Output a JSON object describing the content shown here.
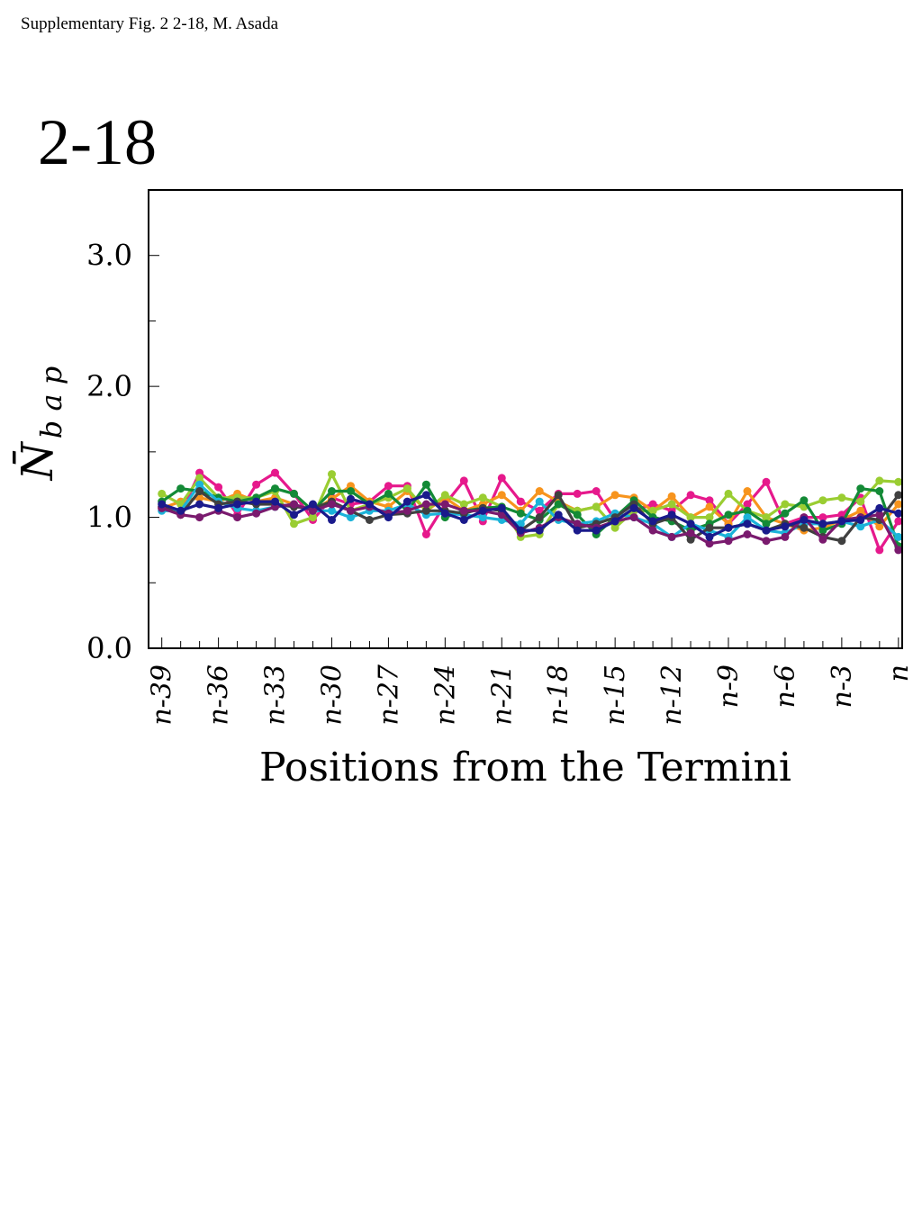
{
  "header": {
    "note": "Supplementary Fig. 2 2-18, M. Asada"
  },
  "panel": {
    "label": "2-18"
  },
  "chart_data": {
    "type": "line",
    "xlabel": "Positions from the Termini",
    "ylabel": "N̄ b a p",
    "ylim": [
      0.0,
      3.5
    ],
    "yticks": [
      "0.0",
      "1.0",
      "2.0",
      "3.0"
    ],
    "ytick_values": [
      0.0,
      1.0,
      2.0,
      3.0
    ],
    "xtick_labels": [
      "n-39",
      "n-36",
      "n-33",
      "n-30",
      "n-27",
      "n-24",
      "n-21",
      "n-18",
      "n-15",
      "n-12",
      "n-9",
      "n-6",
      "n-3",
      "n"
    ],
    "xtick_positions": [
      -39,
      -36,
      -33,
      -30,
      -27,
      -24,
      -21,
      -18,
      -15,
      -12,
      -9,
      -6,
      -3,
      0
    ],
    "x": [
      -39,
      -38,
      -37,
      -36,
      -35,
      -34,
      -33,
      -32,
      -31,
      -30,
      -29,
      -28,
      -27,
      -26,
      -25,
      -24,
      -23,
      -22,
      -21,
      -20,
      -19,
      -18,
      -17,
      -16,
      -15,
      -14,
      -13,
      -12,
      -11,
      -10,
      -9,
      -8,
      -7,
      -6,
      -5,
      -4,
      -3,
      -2,
      -1,
      0
    ],
    "grid": false,
    "series": [
      {
        "color": "#e6198c",
        "values": [
          1.08,
          1.03,
          1.34,
          1.23,
          1.02,
          1.25,
          1.34,
          1.18,
          0.98,
          1.15,
          1.1,
          1.12,
          1.24,
          1.24,
          0.87,
          1.1,
          1.28,
          0.97,
          1.3,
          1.12,
          1.05,
          1.18,
          1.18,
          1.2,
          0.98,
          1.05,
          1.1,
          1.05,
          1.17,
          1.13,
          0.95,
          1.1,
          1.27,
          0.95,
          1.0,
          1.0,
          1.02,
          1.15,
          0.75,
          0.97
        ]
      },
      {
        "color": "#f7941d",
        "values": [
          1.07,
          1.12,
          1.15,
          1.12,
          1.18,
          1.12,
          1.15,
          1.1,
          1.05,
          1.14,
          1.24,
          1.12,
          1.08,
          1.2,
          1.05,
          1.15,
          1.05,
          1.1,
          1.17,
          1.05,
          1.2,
          1.12,
          1.05,
          1.08,
          1.17,
          1.15,
          1.05,
          1.16,
          1.0,
          1.08,
          0.95,
          1.2,
          1.0,
          0.95,
          0.9,
          0.92,
          0.98,
          1.05,
          0.93,
          1.1
        ]
      },
      {
        "color": "#9acd32",
        "values": [
          1.18,
          1.1,
          1.3,
          1.15,
          1.15,
          1.15,
          1.2,
          0.95,
          1.0,
          1.33,
          1.05,
          1.1,
          1.15,
          1.22,
          1.05,
          1.17,
          1.1,
          1.15,
          1.08,
          0.85,
          0.87,
          1.1,
          1.05,
          1.08,
          0.92,
          1.05,
          1.05,
          1.1,
          1.0,
          1.0,
          1.18,
          1.05,
          1.0,
          1.1,
          1.08,
          1.13,
          1.15,
          1.12,
          1.28,
          1.27
        ]
      },
      {
        "color": "#138a36",
        "values": [
          1.12,
          1.22,
          1.2,
          1.15,
          1.12,
          1.15,
          1.22,
          1.18,
          1.05,
          1.2,
          1.2,
          1.1,
          1.18,
          1.05,
          1.25,
          1.0,
          1.05,
          1.07,
          1.08,
          1.03,
          0.98,
          1.1,
          1.02,
          0.87,
          1.0,
          1.13,
          1.0,
          0.97,
          0.9,
          0.95,
          1.02,
          1.05,
          0.95,
          1.03,
          1.13,
          0.9,
          0.95,
          1.22,
          1.2,
          0.78
        ]
      },
      {
        "color": "#1bb3d9",
        "values": [
          1.05,
          1.05,
          1.25,
          1.12,
          1.07,
          1.05,
          1.08,
          1.1,
          1.05,
          1.05,
          1.0,
          1.05,
          1.05,
          1.1,
          1.02,
          1.03,
          1.02,
          1.0,
          0.98,
          0.95,
          1.12,
          0.98,
          0.95,
          0.97,
          1.03,
          1.0,
          0.95,
          0.85,
          0.95,
          0.9,
          0.85,
          1.0,
          0.9,
          0.88,
          0.95,
          0.95,
          0.97,
          0.93,
          0.98,
          0.85
        ]
      },
      {
        "color": "#404040",
        "values": [
          1.08,
          1.02,
          1.2,
          1.1,
          1.12,
          1.1,
          1.1,
          1.08,
          1.07,
          1.12,
          1.05,
          0.98,
          1.02,
          1.03,
          1.05,
          1.05,
          1.03,
          1.07,
          1.05,
          0.9,
          1.0,
          1.17,
          0.92,
          0.95,
          1.0,
          1.1,
          0.95,
          1.0,
          0.83,
          0.92,
          0.92,
          0.95,
          0.9,
          0.95,
          0.92,
          0.85,
          0.82,
          1.0,
          0.98,
          1.17
        ]
      },
      {
        "color": "#7a1a6e",
        "values": [
          1.07,
          1.02,
          1.0,
          1.05,
          1.0,
          1.03,
          1.08,
          1.1,
          1.05,
          1.1,
          1.05,
          1.08,
          1.03,
          1.05,
          1.1,
          1.1,
          1.05,
          1.05,
          1.02,
          0.88,
          0.92,
          1.0,
          0.95,
          0.92,
          0.97,
          1.0,
          0.9,
          0.85,
          0.88,
          0.8,
          0.82,
          0.87,
          0.82,
          0.85,
          1.0,
          0.83,
          0.98,
          1.0,
          1.02,
          0.75
        ]
      },
      {
        "color": "#1a1a8c",
        "values": [
          1.1,
          1.05,
          1.1,
          1.07,
          1.1,
          1.12,
          1.12,
          1.02,
          1.1,
          0.98,
          1.14,
          1.1,
          1.0,
          1.12,
          1.17,
          1.03,
          0.98,
          1.05,
          1.07,
          0.9,
          0.9,
          1.02,
          0.9,
          0.9,
          0.97,
          1.07,
          0.97,
          1.02,
          0.95,
          0.85,
          0.92,
          0.95,
          0.9,
          0.93,
          0.98,
          0.95,
          0.97,
          0.98,
          1.07,
          1.03
        ]
      }
    ]
  }
}
